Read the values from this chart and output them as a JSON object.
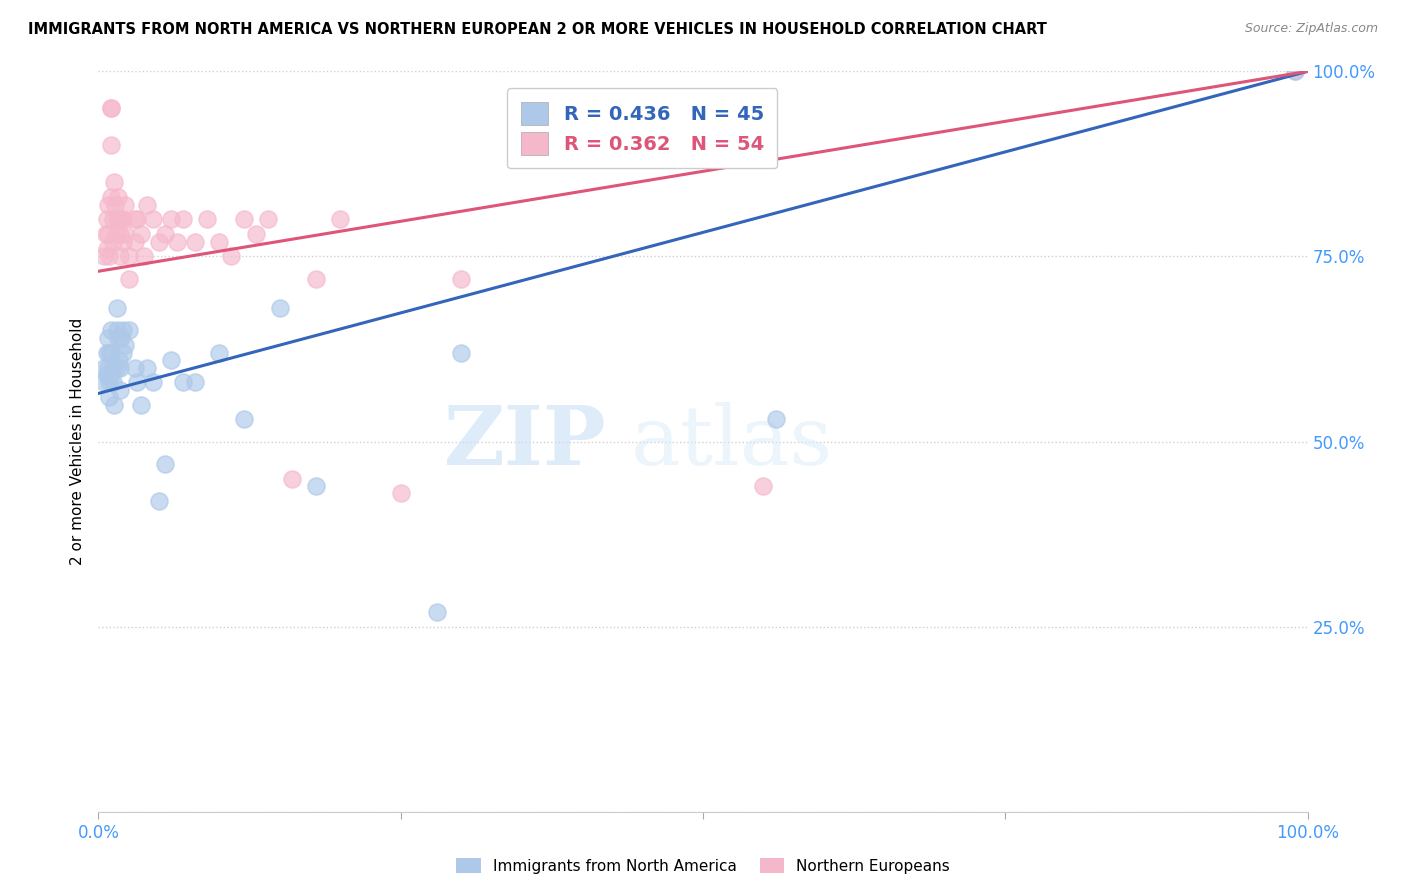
{
  "title": "IMMIGRANTS FROM NORTH AMERICA VS NORTHERN EUROPEAN 2 OR MORE VEHICLES IN HOUSEHOLD CORRELATION CHART",
  "source": "Source: ZipAtlas.com",
  "ylabel": "2 or more Vehicles in Household",
  "xlim": [
    0.0,
    1.0
  ],
  "ylim": [
    0.0,
    1.0
  ],
  "blue_R": 0.436,
  "blue_N": 45,
  "pink_R": 0.362,
  "pink_N": 54,
  "blue_color": "#adc8e8",
  "pink_color": "#f5b8cb",
  "blue_line_color": "#3366bb",
  "pink_line_color": "#dd5577",
  "legend_label_blue": "Immigrants from North America",
  "legend_label_pink": "Northern Europeans",
  "watermark_zip": "ZIP",
  "watermark_atlas": "atlas",
  "tick_color": "#4499ff",
  "grid_color": "#d0d0d0",
  "blue_line_x0": 0.0,
  "blue_line_y0": 0.565,
  "blue_line_x1": 1.0,
  "blue_line_y1": 1.0,
  "pink_line_x0": 0.0,
  "pink_line_y0": 0.73,
  "pink_line_x1": 1.0,
  "pink_line_y1": 1.0,
  "blue_x": [
    0.005,
    0.005,
    0.007,
    0.007,
    0.008,
    0.008,
    0.009,
    0.009,
    0.009,
    0.01,
    0.01,
    0.01,
    0.012,
    0.012,
    0.013,
    0.015,
    0.015,
    0.015,
    0.016,
    0.017,
    0.018,
    0.018,
    0.019,
    0.02,
    0.02,
    0.022,
    0.025,
    0.03,
    0.032,
    0.035,
    0.04,
    0.045,
    0.05,
    0.055,
    0.06,
    0.07,
    0.08,
    0.1,
    0.12,
    0.15,
    0.18,
    0.28,
    0.3,
    0.56,
    0.99
  ],
  "blue_y": [
    0.58,
    0.6,
    0.62,
    0.59,
    0.64,
    0.6,
    0.62,
    0.58,
    0.56,
    0.65,
    0.62,
    0.59,
    0.6,
    0.58,
    0.55,
    0.68,
    0.65,
    0.6,
    0.64,
    0.61,
    0.6,
    0.57,
    0.64,
    0.65,
    0.62,
    0.63,
    0.65,
    0.6,
    0.58,
    0.55,
    0.6,
    0.58,
    0.42,
    0.47,
    0.61,
    0.58,
    0.58,
    0.62,
    0.53,
    0.68,
    0.44,
    0.27,
    0.62,
    0.53,
    1.0
  ],
  "pink_x": [
    0.005,
    0.006,
    0.007,
    0.007,
    0.008,
    0.008,
    0.009,
    0.01,
    0.01,
    0.01,
    0.01,
    0.012,
    0.012,
    0.013,
    0.014,
    0.015,
    0.015,
    0.016,
    0.017,
    0.018,
    0.018,
    0.019,
    0.02,
    0.02,
    0.022,
    0.022,
    0.025,
    0.025,
    0.03,
    0.03,
    0.032,
    0.035,
    0.038,
    0.04,
    0.045,
    0.05,
    0.055,
    0.06,
    0.065,
    0.07,
    0.08,
    0.09,
    0.1,
    0.11,
    0.12,
    0.13,
    0.14,
    0.16,
    0.18,
    0.2,
    0.25,
    0.3,
    0.55,
    0.99
  ],
  "pink_y": [
    0.75,
    0.78,
    0.8,
    0.76,
    0.82,
    0.78,
    0.75,
    0.95,
    0.95,
    0.9,
    0.83,
    0.8,
    0.77,
    0.85,
    0.82,
    0.8,
    0.78,
    0.83,
    0.8,
    0.78,
    0.75,
    0.8,
    0.8,
    0.77,
    0.82,
    0.78,
    0.75,
    0.72,
    0.8,
    0.77,
    0.8,
    0.78,
    0.75,
    0.82,
    0.8,
    0.77,
    0.78,
    0.8,
    0.77,
    0.8,
    0.77,
    0.8,
    0.77,
    0.75,
    0.8,
    0.78,
    0.8,
    0.45,
    0.72,
    0.8,
    0.43,
    0.72,
    0.44,
    1.0
  ]
}
